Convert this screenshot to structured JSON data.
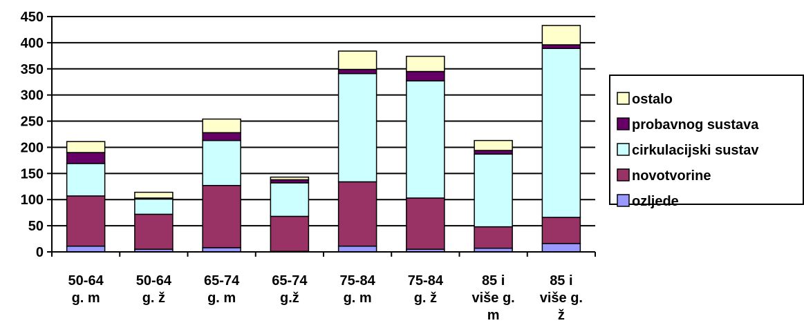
{
  "chart_data": {
    "type": "bar",
    "stacked": true,
    "title": "",
    "xlabel": "",
    "ylabel": "",
    "ylim": [
      0,
      450
    ],
    "yticks": [
      0,
      50,
      100,
      150,
      200,
      250,
      300,
      350,
      400,
      450
    ],
    "grid": true,
    "legend_position": "right",
    "categories": [
      [
        "50-64",
        "g. m"
      ],
      [
        "50-64",
        "g. ž"
      ],
      [
        "65-74",
        "g. m"
      ],
      [
        "65-74",
        "g.ž"
      ],
      [
        "75-84",
        "g. m"
      ],
      [
        "75-84",
        "g. ž"
      ],
      [
        "85 i",
        "više g.",
        "m"
      ],
      [
        "85 i",
        "više g.",
        "ž"
      ]
    ],
    "series": [
      {
        "name": "ozljede",
        "color": "#9999ff",
        "values": [
          11,
          5,
          8,
          1,
          11,
          5,
          7,
          16
        ]
      },
      {
        "name": "novotvorine",
        "color": "#993366",
        "values": [
          96,
          67,
          119,
          67,
          123,
          98,
          41,
          50
        ]
      },
      {
        "name": "cirkulacijski sustav",
        "color": "#ccffff",
        "values": [
          62,
          29,
          86,
          64,
          207,
          224,
          139,
          323
        ]
      },
      {
        "name": "probavnog sustava",
        "color": "#660066",
        "values": [
          21,
          2,
          15,
          6,
          8,
          18,
          7,
          7
        ]
      },
      {
        "name": "ostalo",
        "color": "#ffffcc",
        "values": [
          21,
          11,
          26,
          5,
          35,
          29,
          19,
          37
        ]
      }
    ]
  }
}
